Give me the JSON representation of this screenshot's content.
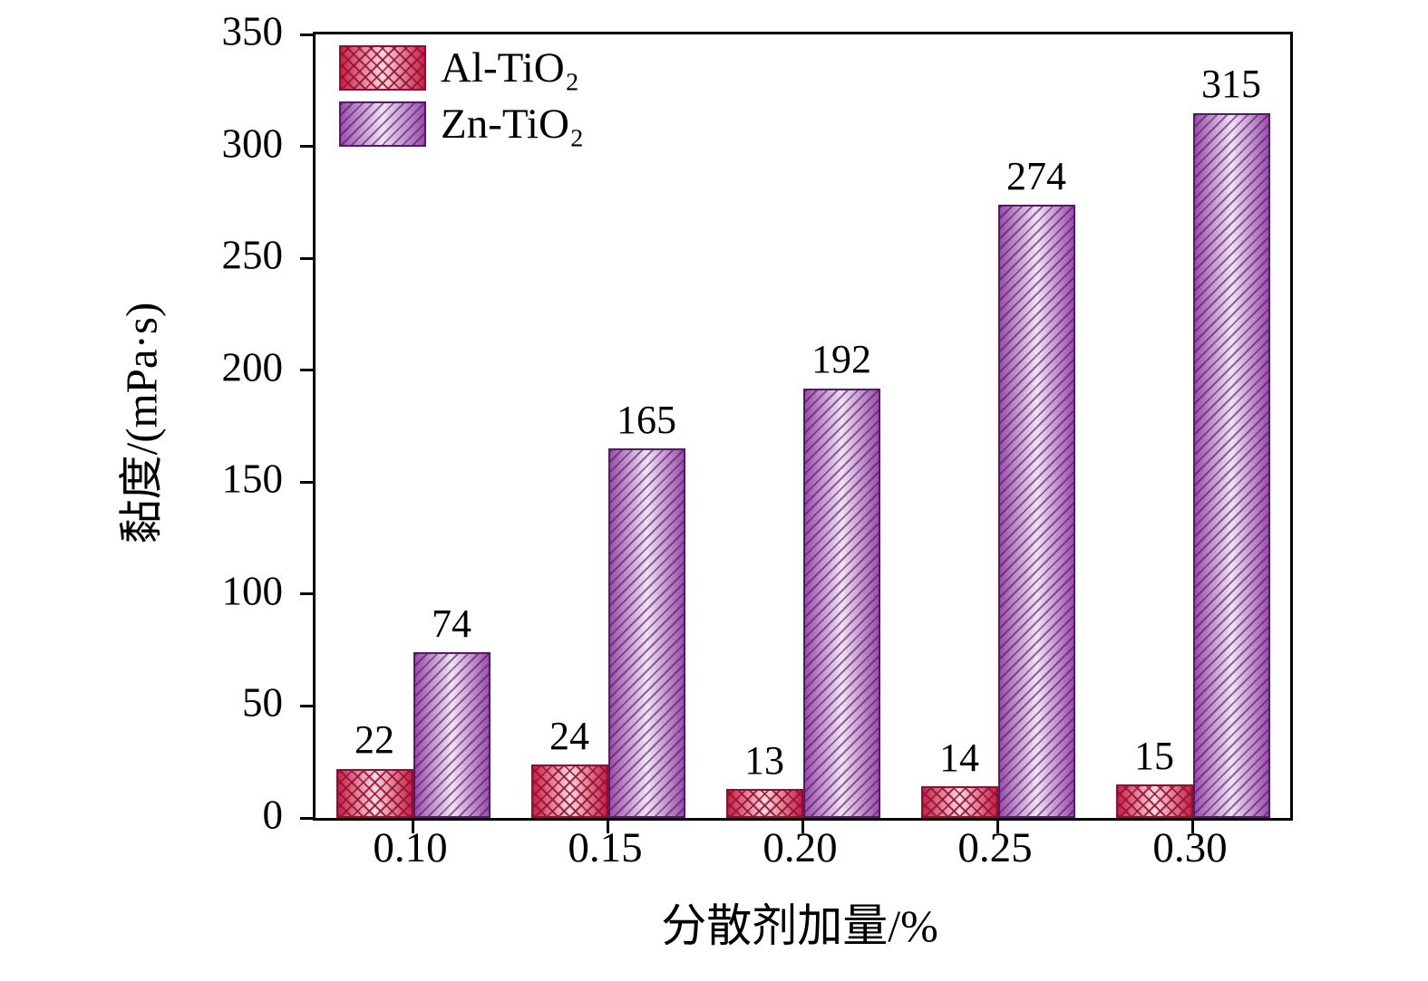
{
  "chart_data": {
    "type": "bar",
    "categories": [
      "0.10",
      "0.15",
      "0.20",
      "0.25",
      "0.30"
    ],
    "series": [
      {
        "name": "Al-TiO₂",
        "values": [
          22,
          24,
          13,
          14,
          15
        ],
        "hatch": "crosshatch",
        "color_edge": "#c62049",
        "color_light": "#f7d9e2",
        "color_border": "#8e1030",
        "color_hatch": "rgba(150,16,48,0.85)"
      },
      {
        "name": "Zn-TiO₂",
        "values": [
          74,
          165,
          192,
          274,
          315
        ],
        "hatch": "diagonal",
        "color_edge": "#9a4fab",
        "color_light": "#f0e2f5",
        "color_border": "#551a66",
        "color_hatch": "rgba(80,20,95,0.6)"
      }
    ],
    "title": "",
    "xlabel": "分散剂加量/%",
    "ylabel": "黏度/(mPa·s)",
    "ylim": [
      0,
      350
    ],
    "yticks": [
      0,
      50,
      100,
      150,
      200,
      250,
      300,
      350
    ],
    "grid": false,
    "legend_position": "top-left",
    "bar_labels": true,
    "frame_color": "#000000"
  }
}
